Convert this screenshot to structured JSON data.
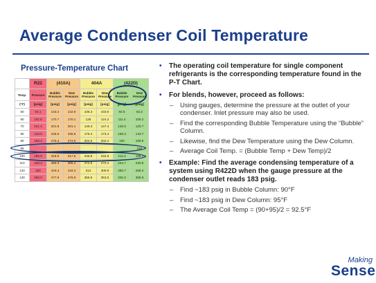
{
  "slide": {
    "title": "Average Condenser Coil Temperature",
    "chart_title": "Pressure-Temperature Chart",
    "logo": {
      "line1": "Making",
      "line2": "Sense"
    }
  },
  "table": {
    "header_refrigerants": [
      "R22",
      "(410A)",
      "404A",
      "(422D)"
    ],
    "header_columns": [
      "Temp.",
      "Pressure",
      "Bubble Pressure",
      "Dew Pressure",
      "Bubble Pressure",
      "Dew Pressure",
      "Bubble Pressure",
      "Dew Pressure"
    ],
    "units": [
      "(°F)",
      "[psig]",
      "[psig]",
      "[psig]",
      "[psig]",
      "[psig]",
      "[psig]",
      "[psig]"
    ],
    "rows": [
      [
        "50",
        "84.1",
        "143.2",
        "142.6",
        "105.3",
        "103.6",
        "92.6",
        "82.2"
      ],
      [
        "60",
        "101.6",
        "170.7",
        "170.1",
        "126",
        "124.2",
        "111.4",
        "100.2"
      ],
      [
        "70",
        "121.4",
        "201.8",
        "201.1",
        "149.3",
        "147.4",
        "132.6",
        "120.7"
      ],
      [
        "80",
        "143.6",
        "236.5",
        "235.8",
        "175.4",
        "173.4",
        "156.3",
        "143.7"
      ],
      [
        "90",
        "168.4",
        "275.4",
        "274.5",
        "204.5",
        "202.4",
        "183",
        "169.5"
      ],
      [
        "95",
        "",
        "",
        "",
        "",
        "",
        "",
        "183"
      ],
      [
        "100",
        "195.9",
        "318.5",
        "317.6",
        "236.8",
        "234.6",
        "212.2",
        "198.4"
      ],
      [
        "110",
        "226.4",
        "366.4",
        "365.4",
        "272.5",
        "270.4",
        "244.7",
        "230.5"
      ],
      [
        "120",
        "260",
        "419.4",
        "418.3",
        "312",
        "309.9",
        "280.7",
        "266.2"
      ],
      [
        "130",
        "296.9",
        "477.9",
        "476.8",
        "355.6",
        "353.5",
        "320.2",
        "305.8"
      ]
    ]
  },
  "bullets": [
    {
      "level": 1,
      "text": "The operating coil temperature for single component refrigerants is the corresponding temperature found in the P-T Chart."
    },
    {
      "level": 1,
      "text": "For blends, however, proceed as follows:"
    },
    {
      "level": 2,
      "text": "Using gauges, determine the pressure at the outlet of your condenser. Inlet pressure may also be used."
    },
    {
      "level": 2,
      "text": "Find the corresponding Bubble Temperature using the “Bubble” Column."
    },
    {
      "level": 2,
      "text": "Likewise, find the Dew Temperature using the Dew Column."
    },
    {
      "level": 2,
      "text": "Average Coil Temp. = (Bubble Temp + Dew Temp)/2"
    },
    {
      "level": 1,
      "text": "Example: Find the average condensing temperature of a system using R422D when the gauge pressure at the condenser outlet reads 183 psig."
    },
    {
      "level": 2,
      "text": "Find ~183 psig in Bubble Column: 90°F"
    },
    {
      "level": 2,
      "text": "Find ~183 psig in Dew Column: 95°F"
    },
    {
      "level": 2,
      "text": "The Average Coil Temp = (90+95)/2 = 92.5°F"
    }
  ]
}
